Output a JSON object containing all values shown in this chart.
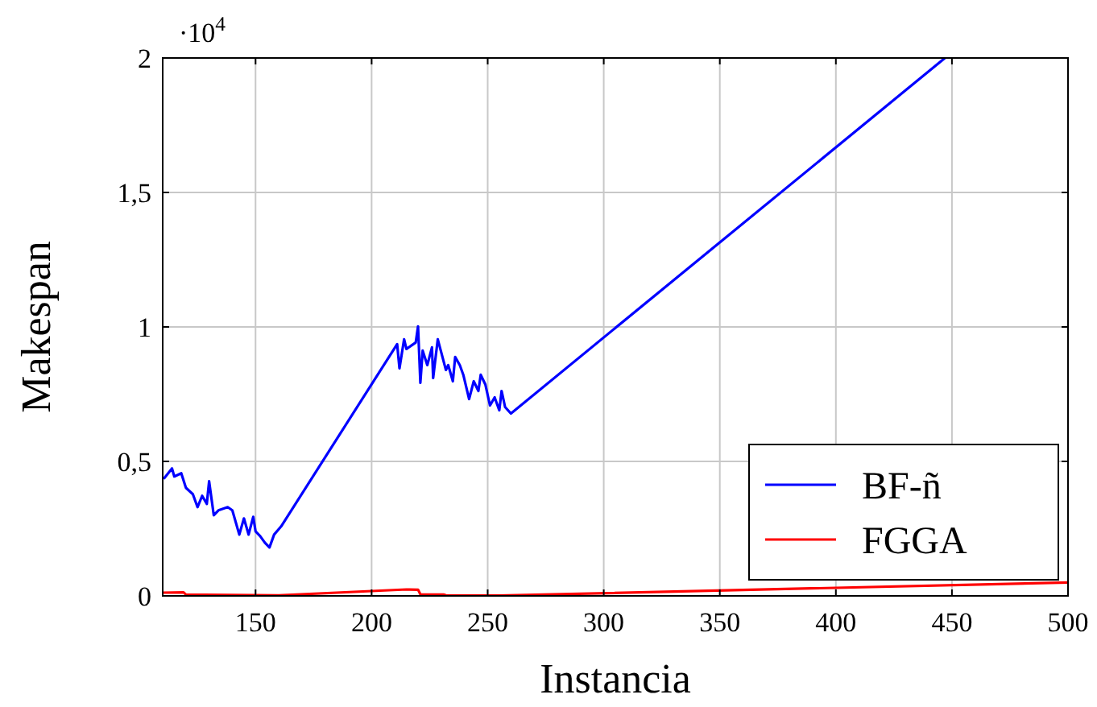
{
  "chart_data": {
    "type": "line",
    "xlabel": "Instancia",
    "ylabel": "Makespan",
    "annotations": [
      "·10$^{4}$"
    ],
    "xlim": [
      110,
      500
    ],
    "xticks": [
      150,
      200,
      250,
      300,
      350,
      400,
      450,
      500
    ],
    "ylim": [
      0,
      2
    ],
    "yticks": [
      0,
      {
        "value": 0.5,
        "label": "0,5"
      },
      1,
      {
        "value": 1.5,
        "label": "1,5"
      },
      2
    ],
    "grid": true,
    "legend": "bottom right",
    "marker": "none",
    "line_style": "solid",
    "series": [
      {
        "name": "BF-ñ",
        "color": "#0000ff",
        "x": [
          110.7,
          114,
          115,
          118,
          120,
          123,
          125,
          127,
          129,
          130,
          132,
          134,
          138,
          140,
          143,
          145,
          147,
          149,
          150,
          152,
          154,
          156,
          158,
          161,
          211,
          212,
          214,
          215,
          219,
          220,
          221,
          222,
          224,
          226,
          226.5,
          228.5,
          232,
          233,
          235,
          236,
          238,
          239.5,
          242,
          244,
          246,
          247,
          249,
          251,
          253,
          255,
          256,
          257.5,
          260,
          447
        ],
        "values": [
          0.438,
          0.474,
          0.444,
          0.456,
          0.402,
          0.378,
          0.33,
          0.372,
          0.342,
          0.426,
          0.3,
          0.318,
          0.33,
          0.318,
          0.228,
          0.288,
          0.228,
          0.294,
          0.24,
          0.222,
          0.198,
          0.18,
          0.228,
          0.258,
          0.936,
          0.846,
          0.954,
          0.918,
          0.942,
          1.002,
          0.792,
          0.912,
          0.858,
          0.924,
          0.81,
          0.954,
          0.84,
          0.858,
          0.798,
          0.888,
          0.858,
          0.822,
          0.732,
          0.798,
          0.762,
          0.822,
          0.786,
          0.708,
          0.738,
          0.69,
          0.762,
          0.702,
          0.678,
          2
        ]
      },
      {
        "name": "FGGA",
        "color": "#ff0000",
        "x": [
          110,
          119,
          120,
          160,
          200,
          215,
          220,
          221,
          231,
          232,
          255,
          500
        ],
        "values": [
          0.012,
          0.013,
          0.005,
          0.002,
          0.018,
          0.024,
          0.023,
          0.006,
          0.005,
          0.002,
          0.001,
          0.05
        ]
      }
    ]
  }
}
